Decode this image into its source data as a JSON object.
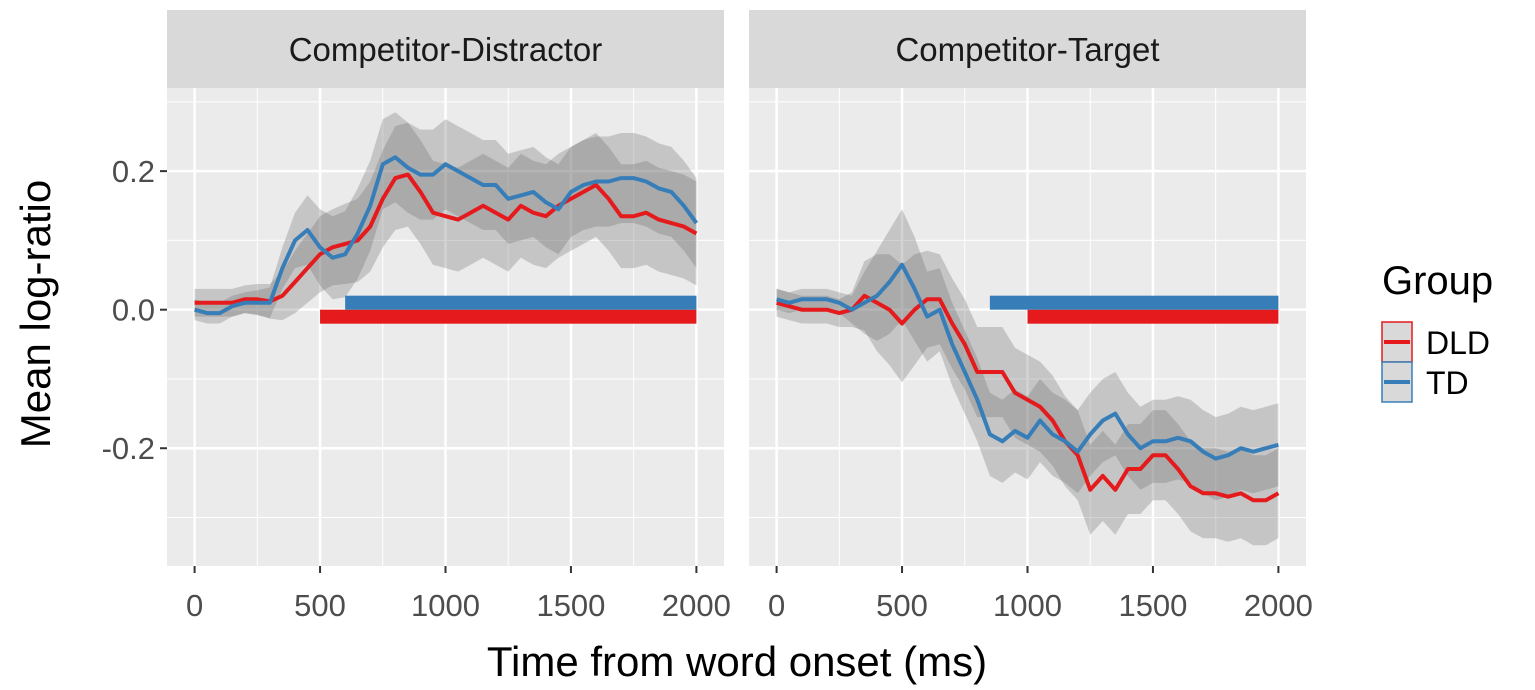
{
  "chart_data": {
    "type": "line",
    "title": "",
    "xlabel": "Time from word onset (ms)",
    "ylabel": "Mean log-ratio",
    "xlim": [
      -110,
      2110
    ],
    "ylim": [
      -0.37,
      0.32
    ],
    "xticks": [
      0,
      500,
      1000,
      1500,
      2000
    ],
    "xtick_labels": [
      "0",
      "500",
      "1000",
      "1500",
      "2000"
    ],
    "yticks": [
      -0.2,
      0.0,
      0.2
    ],
    "ytick_labels": [
      "-0.2",
      "0.0",
      "0.2"
    ],
    "grid": true,
    "legend": {
      "title": "Group",
      "position": "right",
      "items": [
        {
          "label": "DLD",
          "color": "#e41a1c"
        },
        {
          "label": "TD",
          "color": "#377eb8"
        }
      ]
    },
    "colors": {
      "DLD": "#e41a1c",
      "TD": "#377eb8",
      "panel_bg": "#ebebeb",
      "strip_bg": "#d9d9d9",
      "ribbon": "#6e6e6e"
    },
    "x": [
      0,
      50,
      100,
      150,
      200,
      250,
      300,
      350,
      400,
      450,
      500,
      550,
      600,
      650,
      700,
      750,
      800,
      850,
      900,
      950,
      1000,
      1050,
      1100,
      1150,
      1200,
      1250,
      1300,
      1350,
      1400,
      1450,
      1500,
      1550,
      1600,
      1650,
      1700,
      1750,
      1800,
      1850,
      1900,
      1950,
      2000
    ],
    "panels": [
      {
        "label": "Competitor-Distractor",
        "series": [
          {
            "name": "DLD",
            "values": [
              0.01,
              0.01,
              0.01,
              0.01,
              0.015,
              0.015,
              0.012,
              0.02,
              0.04,
              0.06,
              0.08,
              0.09,
              0.095,
              0.1,
              0.12,
              0.16,
              0.19,
              0.195,
              0.17,
              0.14,
              0.135,
              0.13,
              0.14,
              0.15,
              0.14,
              0.13,
              0.15,
              0.14,
              0.135,
              0.15,
              0.16,
              0.17,
              0.18,
              0.16,
              0.135,
              0.135,
              0.14,
              0.13,
              0.125,
              0.12,
              0.11
            ],
            "ci_half": [
              0.02,
              0.02,
              0.02,
              0.02,
              0.02,
              0.022,
              0.025,
              0.035,
              0.045,
              0.05,
              0.055,
              0.055,
              0.058,
              0.06,
              0.065,
              0.07,
              0.075,
              0.075,
              0.075,
              0.075,
              0.075,
              0.075,
              0.075,
              0.075,
              0.075,
              0.075,
              0.075,
              0.075,
              0.075,
              0.075,
              0.075,
              0.075,
              0.075,
              0.075,
              0.075,
              0.075,
              0.075,
              0.075,
              0.075,
              0.075,
              0.075
            ],
            "significance": {
              "start": 500,
              "end": 2000
            }
          },
          {
            "name": "TD",
            "values": [
              0.0,
              -0.005,
              -0.005,
              0.005,
              0.01,
              0.01,
              0.01,
              0.06,
              0.1,
              0.115,
              0.09,
              0.075,
              0.08,
              0.11,
              0.15,
              0.21,
              0.22,
              0.205,
              0.195,
              0.195,
              0.21,
              0.2,
              0.19,
              0.18,
              0.18,
              0.16,
              0.165,
              0.17,
              0.155,
              0.145,
              0.17,
              0.18,
              0.185,
              0.185,
              0.19,
              0.19,
              0.185,
              0.175,
              0.17,
              0.15,
              0.125
            ],
            "ci_half": [
              0.015,
              0.015,
              0.015,
              0.015,
              0.015,
              0.018,
              0.022,
              0.03,
              0.04,
              0.05,
              0.055,
              0.06,
              0.062,
              0.065,
              0.065,
              0.065,
              0.065,
              0.065,
              0.065,
              0.065,
              0.065,
              0.065,
              0.065,
              0.065,
              0.065,
              0.065,
              0.065,
              0.065,
              0.065,
              0.065,
              0.065,
              0.065,
              0.065,
              0.065,
              0.065,
              0.065,
              0.065,
              0.065,
              0.065,
              0.065,
              0.065
            ],
            "significance": {
              "start": 600,
              "end": 2000
            }
          }
        ]
      },
      {
        "label": "Competitor-Target",
        "series": [
          {
            "name": "DLD",
            "values": [
              0.01,
              0.005,
              0.0,
              0.0,
              0.0,
              -0.005,
              0.0,
              0.02,
              0.01,
              0.0,
              -0.02,
              0.0,
              0.015,
              0.015,
              -0.02,
              -0.05,
              -0.09,
              -0.09,
              -0.09,
              -0.12,
              -0.13,
              -0.14,
              -0.16,
              -0.19,
              -0.21,
              -0.26,
              -0.24,
              -0.26,
              -0.23,
              -0.23,
              -0.21,
              -0.21,
              -0.23,
              -0.255,
              -0.265,
              -0.265,
              -0.27,
              -0.265,
              -0.275,
              -0.275,
              -0.265
            ],
            "ci_half": [
              0.02,
              0.02,
              0.02,
              0.02,
              0.02,
              0.02,
              0.025,
              0.05,
              0.07,
              0.08,
              0.085,
              0.08,
              0.07,
              0.065,
              0.065,
              0.065,
              0.065,
              0.065,
              0.065,
              0.065,
              0.065,
              0.065,
              0.065,
              0.065,
              0.065,
              0.065,
              0.065,
              0.065,
              0.065,
              0.065,
              0.065,
              0.065,
              0.065,
              0.065,
              0.065,
              0.065,
              0.065,
              0.065,
              0.065,
              0.065,
              0.065
            ],
            "significance": {
              "start": 1000,
              "end": 2000
            }
          },
          {
            "name": "TD",
            "values": [
              0.015,
              0.01,
              0.015,
              0.015,
              0.015,
              0.01,
              0.0,
              0.01,
              0.02,
              0.04,
              0.065,
              0.03,
              -0.01,
              0.0,
              -0.05,
              -0.09,
              -0.13,
              -0.18,
              -0.19,
              -0.175,
              -0.185,
              -0.16,
              -0.18,
              -0.19,
              -0.205,
              -0.18,
              -0.16,
              -0.15,
              -0.18,
              -0.2,
              -0.19,
              -0.19,
              -0.185,
              -0.19,
              -0.205,
              -0.215,
              -0.21,
              -0.2,
              -0.205,
              -0.2,
              -0.195
            ],
            "ci_half": [
              0.015,
              0.015,
              0.015,
              0.015,
              0.015,
              0.015,
              0.02,
              0.045,
              0.065,
              0.075,
              0.08,
              0.075,
              0.065,
              0.06,
              0.06,
              0.06,
              0.06,
              0.06,
              0.06,
              0.06,
              0.06,
              0.06,
              0.06,
              0.06,
              0.06,
              0.06,
              0.06,
              0.06,
              0.06,
              0.06,
              0.06,
              0.06,
              0.06,
              0.06,
              0.06,
              0.06,
              0.06,
              0.06,
              0.06,
              0.06,
              0.06
            ],
            "significance": {
              "start": 850,
              "end": 2000
            }
          }
        ]
      }
    ]
  }
}
